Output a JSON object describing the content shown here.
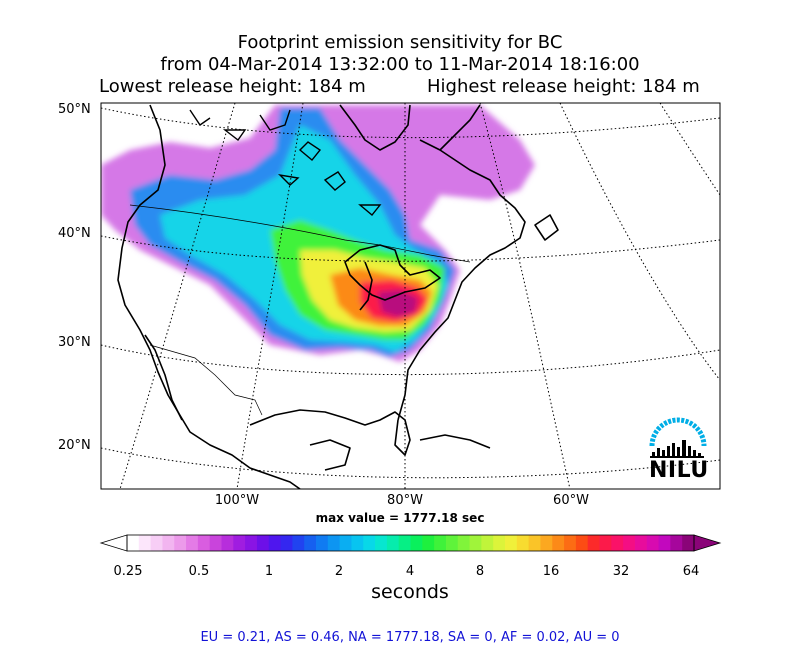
{
  "title": {
    "line1": "Footprint emission sensitivity for BC",
    "line2": "from 04-Mar-2014 13:32:00 to 11-Mar-2014 18:16:00",
    "lowest_release": "Lowest release height: 184 m",
    "highest_release": "Highest release height: 184 m"
  },
  "map": {
    "projection": "lambert-conformal",
    "region": "North America",
    "lat_labels": [
      "50°N",
      "40°N",
      "30°N",
      "20°N"
    ],
    "lon_labels": [
      "100°W",
      "80°W",
      "60°W"
    ],
    "gridlines": "dotted",
    "max_value_text": "max value = 1777.18 sec",
    "plume_peak_region": "Great Lakes / Lake Ontario"
  },
  "logo": {
    "text": "NILU",
    "color": "#00aee6"
  },
  "colorbar": {
    "ticks": [
      "0.25",
      "0.5",
      "1",
      "2",
      "4",
      "8",
      "16",
      "32",
      "64"
    ],
    "unit_label": "seconds",
    "extend": "both",
    "colors": [
      "#ffffff",
      "#fce6fb",
      "#f7cef6",
      "#f2b5f0",
      "#ec9aea",
      "#e47be6",
      "#d95de0",
      "#c944dc",
      "#b72edc",
      "#a01de0",
      "#8a14e4",
      "#6d10e8",
      "#4f16ee",
      "#3427f0",
      "#2143f0",
      "#1660f0",
      "#107bf2",
      "#0d95f2",
      "#0aaef2",
      "#08c4f0",
      "#08d8e8",
      "#07e6d0",
      "#06ecad",
      "#06ef85",
      "#0af05c",
      "#1ef03e",
      "#3ff23a",
      "#5ff33a",
      "#80f43a",
      "#a0f43a",
      "#c0f43a",
      "#dcf43a",
      "#f0f03a",
      "#f8dc30",
      "#fac428",
      "#fca820",
      "#fc8a18",
      "#fc6c14",
      "#fc4c14",
      "#fc2a2a",
      "#fc1a4a",
      "#fa1268",
      "#f40e84",
      "#e80c9c",
      "#d80ab0",
      "#c208be",
      "#a6069c",
      "#8a0478"
    ]
  },
  "footer": {
    "text": "EU = 0.21,  AS = 0.46,  NA = 1777.18,  SA = 0,  AF = 0.02,  AU = 0"
  }
}
